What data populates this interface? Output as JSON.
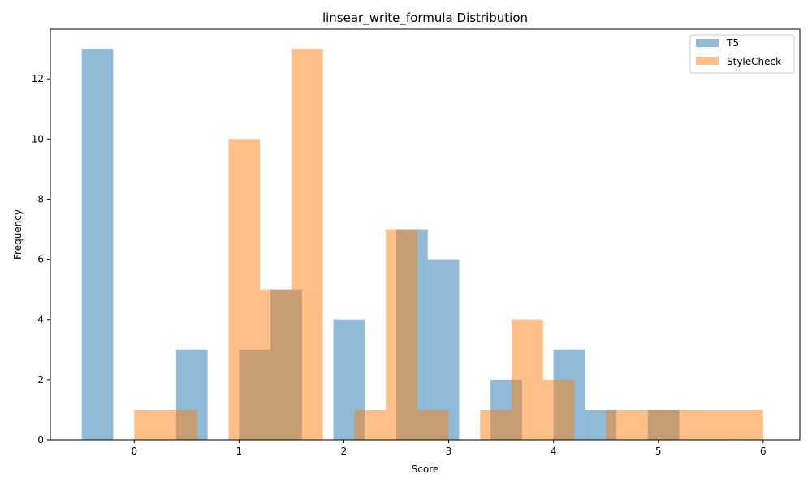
{
  "chart_data": {
    "type": "histogram",
    "title": "linsear_write_formula Distribution",
    "xlabel": "Score",
    "ylabel": "Frequency",
    "xlim": [
      -0.8,
      6.35
    ],
    "ylim": [
      0,
      13.65
    ],
    "xticks": [
      0,
      1,
      2,
      3,
      4,
      5,
      6
    ],
    "yticks": [
      0,
      2,
      4,
      6,
      8,
      10,
      12
    ],
    "legend": {
      "position": "top-right"
    },
    "series": [
      {
        "name": "T5",
        "color": "#1f77b4",
        "opacity": 0.5,
        "bin_start": -0.5,
        "bin_width": 0.3,
        "counts": [
          13,
          0,
          0,
          3,
          0,
          3,
          5,
          0,
          4,
          0,
          7,
          6,
          0,
          2,
          0,
          3,
          1,
          0,
          1
        ]
      },
      {
        "name": "StyleCheck",
        "color": "#ff7f0e",
        "opacity": 0.5,
        "bin_start": 0.0,
        "bin_width": 0.3,
        "counts": [
          1,
          1,
          0,
          10,
          5,
          13,
          0,
          1,
          7,
          1,
          0,
          1,
          4,
          2,
          0,
          1,
          1,
          1,
          1,
          1
        ]
      }
    ]
  }
}
